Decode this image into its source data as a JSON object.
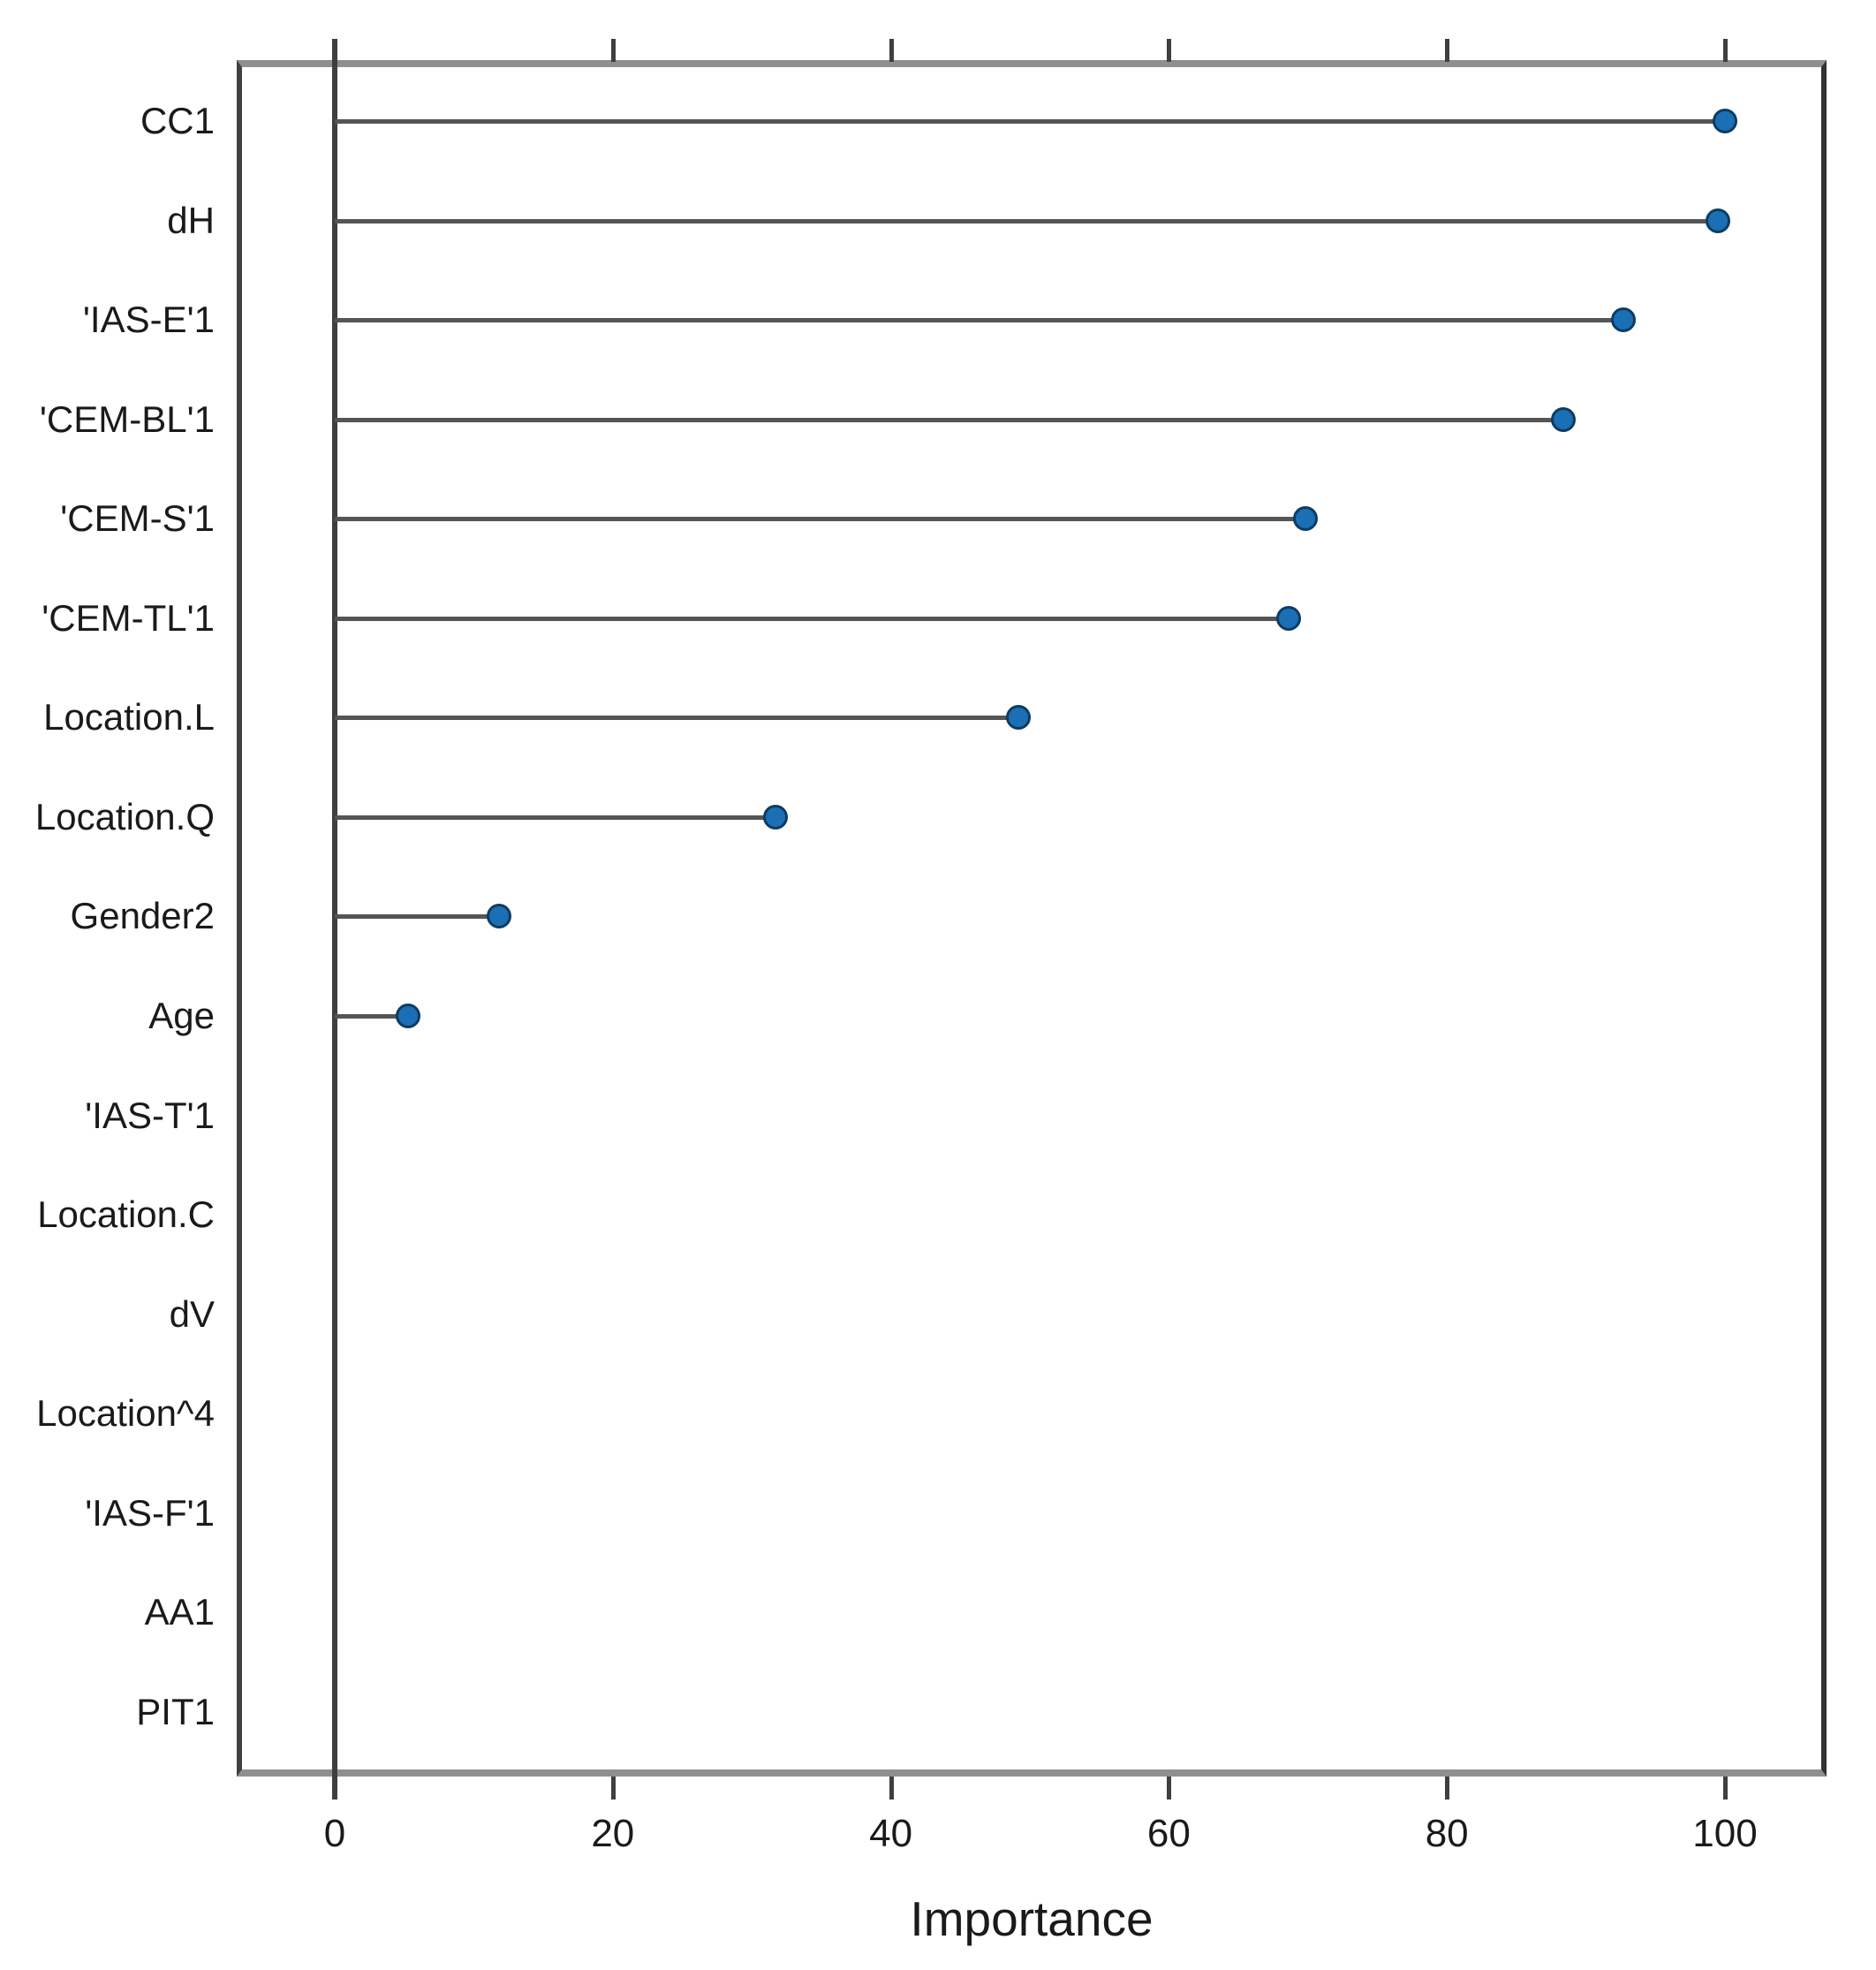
{
  "chart_data": {
    "type": "scatter",
    "variant": "cleveland-dot-plot-lollipop",
    "title": "",
    "xlabel": "Importance",
    "ylabel": "",
    "categories": [
      "CC1",
      "dH",
      "'IAS-E'1",
      "'CEM-BL'1",
      "'CEM-S'1",
      "'CEM-TL'1",
      "Location.L",
      "Location.Q",
      "Gender2",
      "Age",
      "'IAS-T'1",
      "Location.C",
      "dV",
      "Location^4",
      "'IAS-F'1",
      "AA1",
      "PIT1"
    ],
    "values": [
      100,
      99.5,
      92.7,
      88.4,
      69.8,
      68.6,
      49.2,
      31.7,
      11.8,
      5.3,
      0,
      0,
      0,
      0,
      0,
      0,
      0
    ],
    "xticks": [
      0,
      20,
      40,
      60,
      80,
      100
    ],
    "xlim": [
      -7,
      107
    ],
    "grid": false,
    "legend": false,
    "point_color": "#1b6fb5",
    "point_edge_color": "#0e3c61",
    "stem_color": "#555555",
    "axis_color": "#3f3f3f",
    "box_color": "#8f8f8f",
    "text_color": "#1a1a1a"
  }
}
